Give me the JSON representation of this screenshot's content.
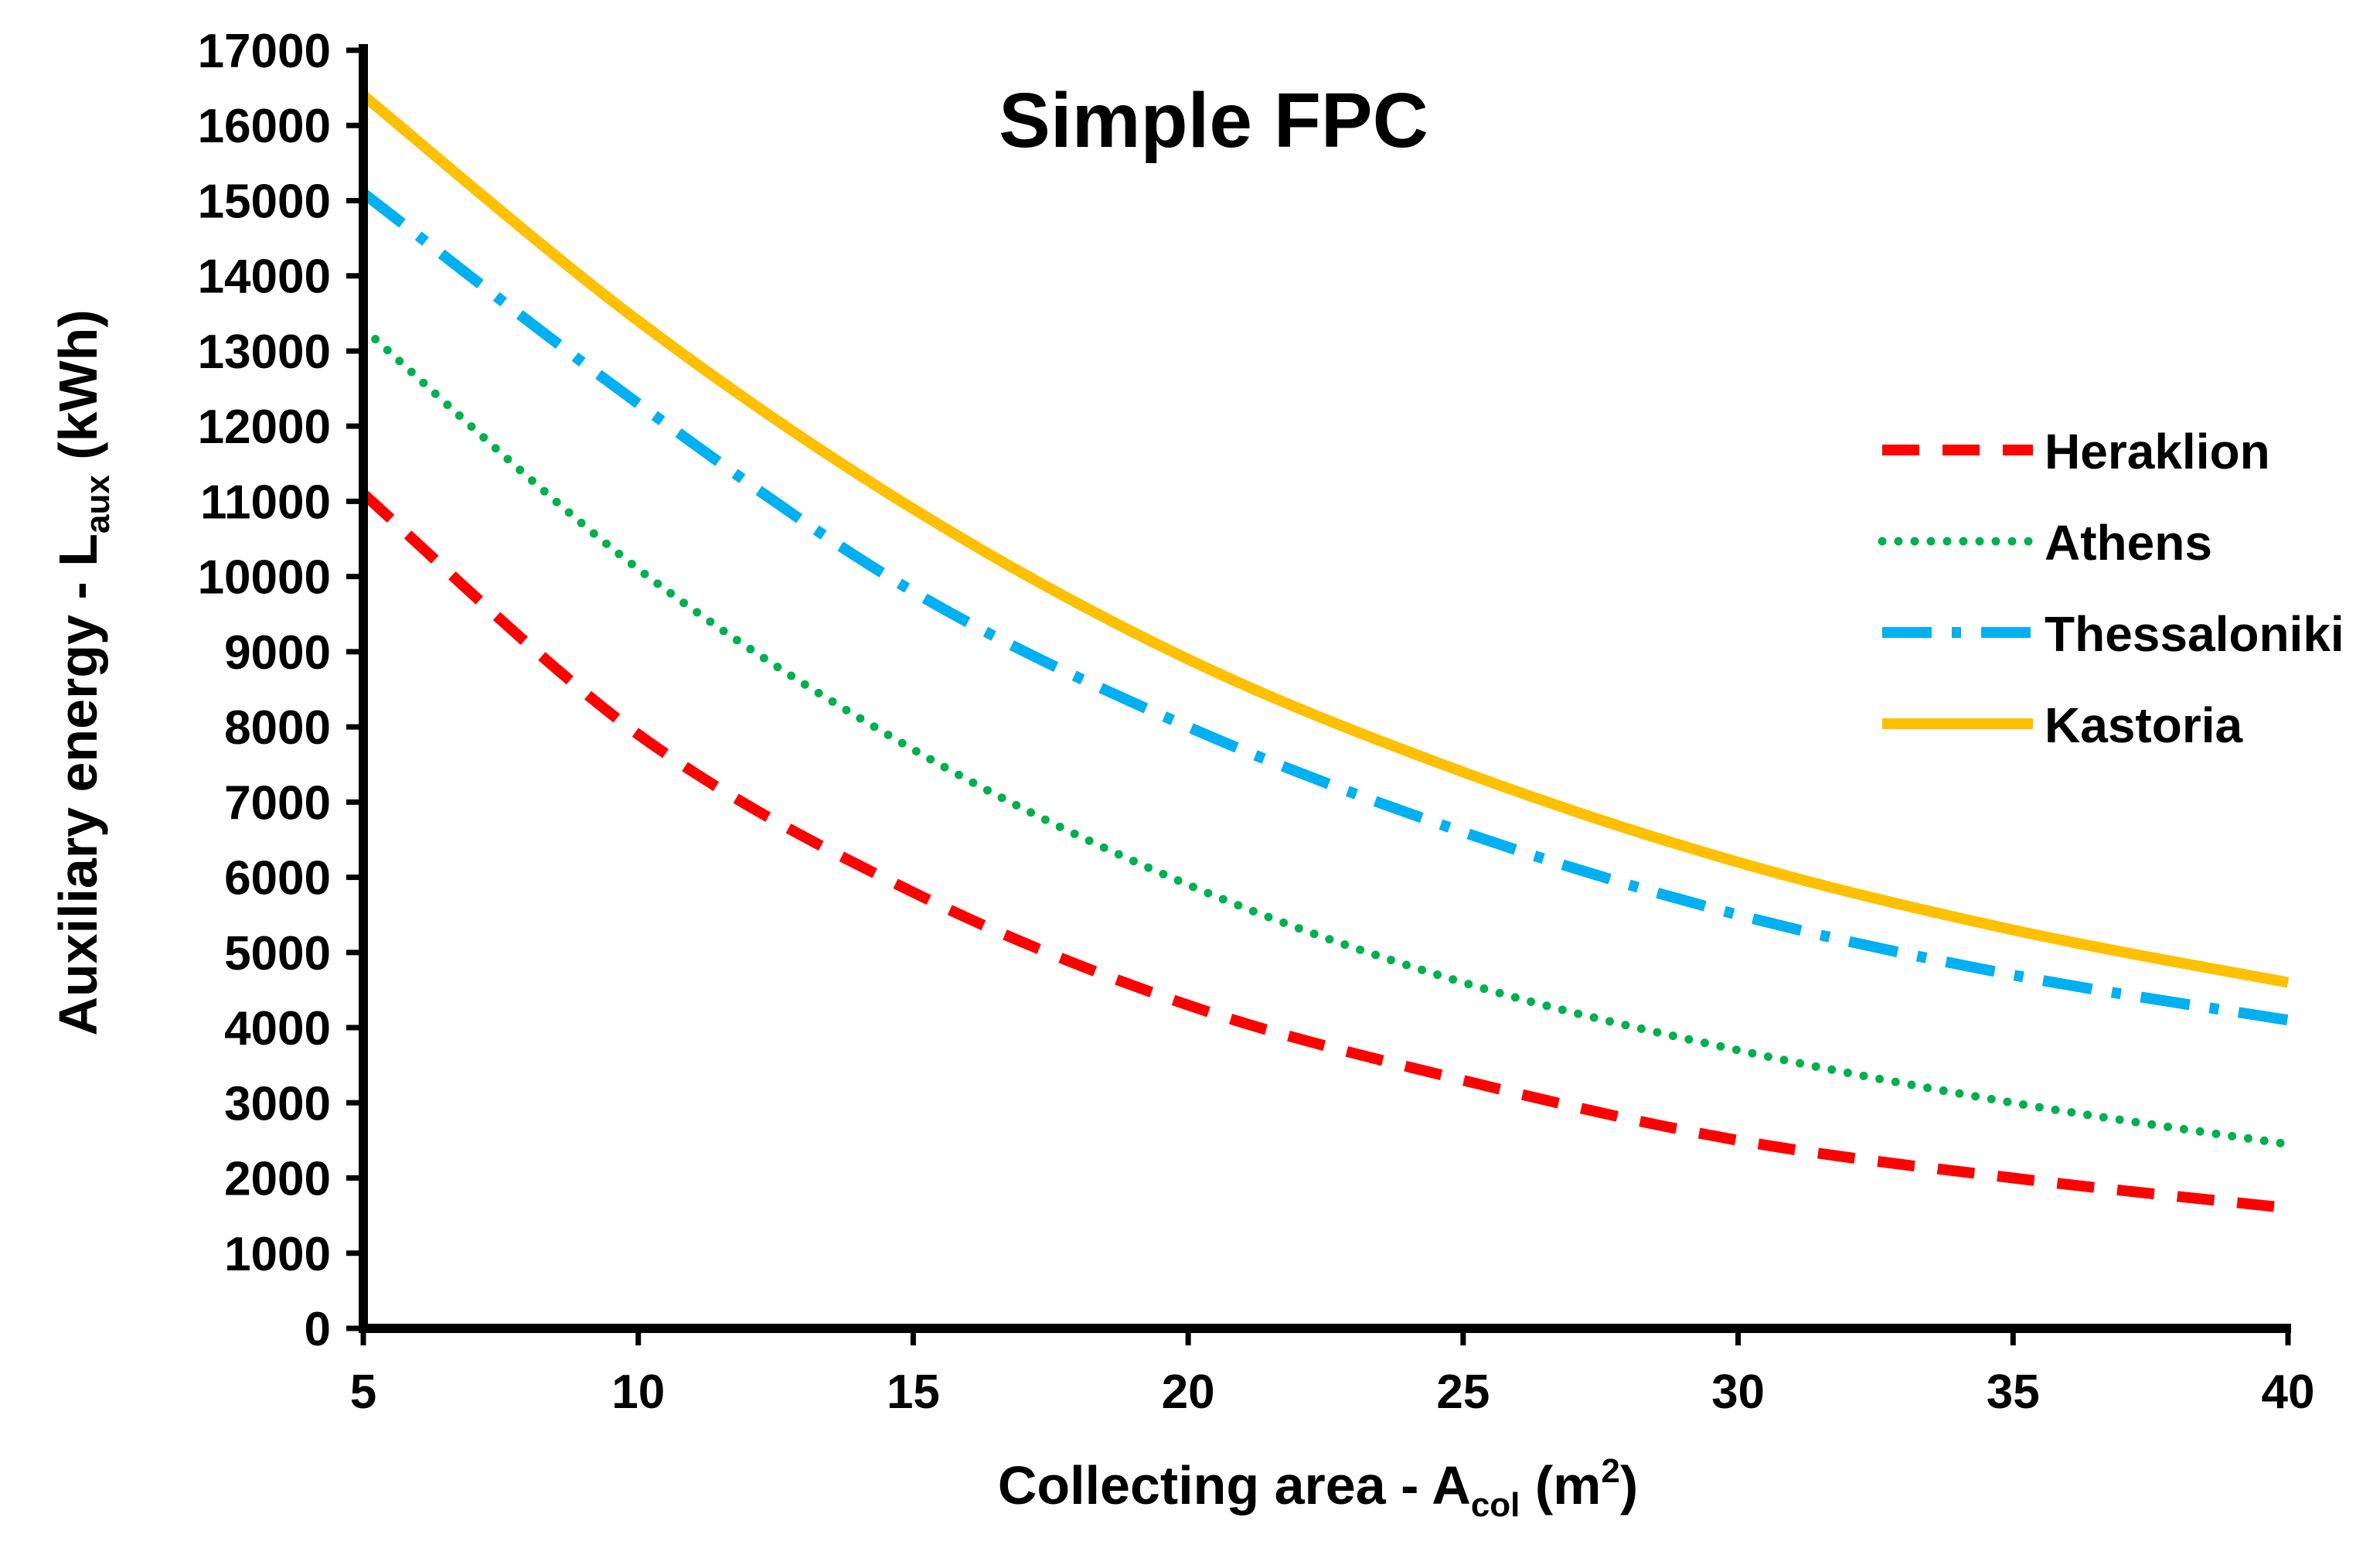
{
  "chart_data": {
    "type": "line",
    "title": "Simple FPC",
    "xlabel": {
      "main": "Collecting area - A",
      "sub": "col",
      "unit_open": " (m",
      "sup": "2",
      "unit_close": ")"
    },
    "ylabel": {
      "main": "Auxiliary energy - L",
      "sub": "aux",
      "unit": " (kWh)"
    },
    "xlim": [
      5,
      40
    ],
    "ylim": [
      0,
      17000
    ],
    "xticks": [
      5,
      10,
      15,
      20,
      25,
      30,
      35,
      40
    ],
    "xtick_labels": [
      "5",
      "10",
      "15",
      "20",
      "25",
      "30",
      "35",
      "40"
    ],
    "yticks": [
      0,
      1000,
      2000,
      3000,
      4000,
      5000,
      6000,
      7000,
      8000,
      9000,
      10000,
      11000,
      12000,
      13000,
      14000,
      15000,
      16000,
      17000
    ],
    "ytick_labels": [
      "0",
      "1000",
      "2000",
      "3000",
      "4000",
      "5000",
      "6000",
      "7000",
      "8000",
      "9000",
      "10000",
      "11000",
      "12000",
      "13000",
      "14000",
      "15000",
      "16000",
      "17000"
    ],
    "grid": false,
    "legend_position": "right",
    "x": [
      5,
      10,
      15,
      20,
      25,
      30,
      35,
      40
    ],
    "series": [
      {
        "name": "Heraklion",
        "color": "#ff0000",
        "style": "dashed",
        "values": [
          11100,
          7900,
          5800,
          4300,
          3300,
          2500,
          2000,
          1600
        ]
      },
      {
        "name": "Athens",
        "color": "#00b050",
        "style": "dotted",
        "values": [
          13300,
          10100,
          7700,
          5900,
          4600,
          3700,
          3000,
          2450
        ]
      },
      {
        "name": "Thessaloniki",
        "color": "#00b0f0",
        "style": "dash-dot",
        "values": [
          15100,
          12300,
          9800,
          8000,
          6600,
          5500,
          4700,
          4100
        ]
      },
      {
        "name": "Kastoria",
        "color": "#ffc000",
        "style": "solid",
        "values": [
          16400,
          13400,
          10900,
          8900,
          7400,
          6200,
          5300,
          4600
        ]
      }
    ]
  }
}
